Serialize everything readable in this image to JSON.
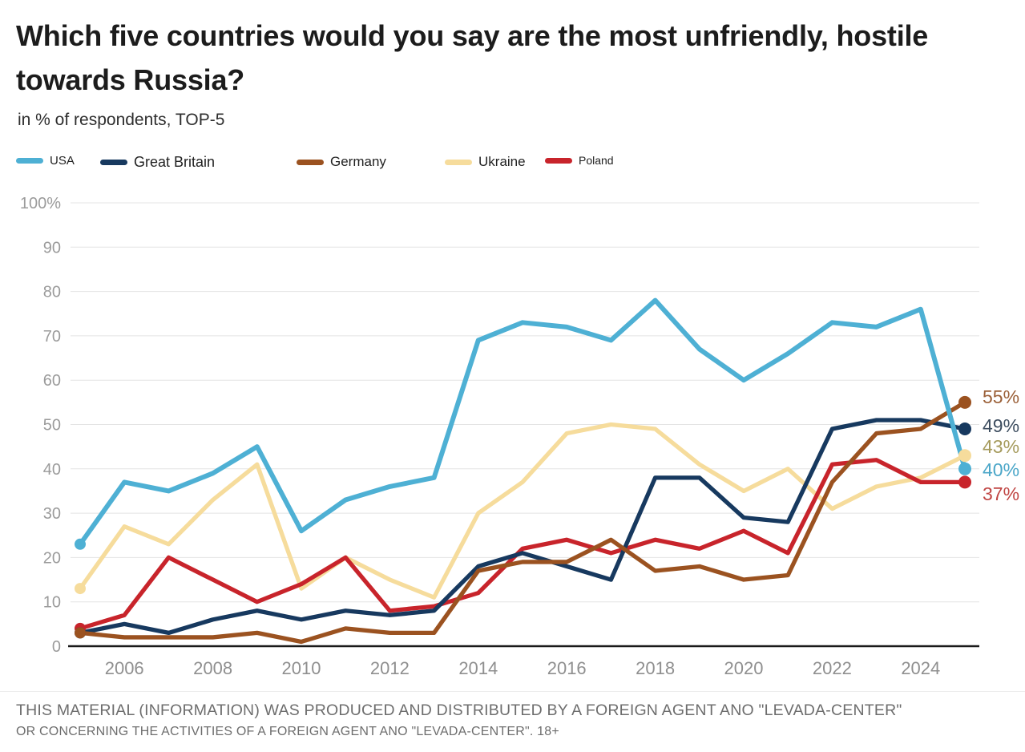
{
  "page": {
    "title": "Which five countries would you say are the most unfriendly, hostile towards Russia?",
    "subtitle": "in % of respondents, TOP-5"
  },
  "footer": {
    "line1": "THIS MATERIAL (INFORMATION) WAS PRODUCED AND DISTRIBUTED BY A FOREIGN AGENT ANO \"LEVADA-CENTER\"",
    "line2": "OR CONCERNING THE ACTIVITIES OF A FOREIGN AGENT ANO \"LEVADA-CENTER\". 18+"
  },
  "chart_data": {
    "type": "line",
    "x": [
      2005,
      2006,
      2007,
      2008,
      2009,
      2010,
      2011,
      2012,
      2013,
      2014,
      2015,
      2016,
      2017,
      2018,
      2019,
      2020,
      2021,
      2022,
      2023,
      2024,
      2025
    ],
    "x_tick_labels": [
      "2006",
      "2008",
      "2010",
      "2012",
      "2014",
      "2016",
      "2018",
      "2020",
      "2022",
      "2024"
    ],
    "x_tick_years": [
      2006,
      2008,
      2010,
      2012,
      2014,
      2016,
      2018,
      2020,
      2022,
      2024
    ],
    "y_ticks": [
      0,
      10,
      20,
      30,
      40,
      50,
      60,
      70,
      80,
      90,
      100
    ],
    "y_tick_top_label": "100%",
    "ylim": [
      0,
      100
    ],
    "grid": true,
    "legend_position": "top-left",
    "series": [
      {
        "name": "USA",
        "color": "#4eb0d4",
        "label_color": "#4aa6c8",
        "end_label": "40%",
        "values": [
          23,
          37,
          35,
          39,
          45,
          26,
          33,
          36,
          38,
          69,
          73,
          72,
          69,
          78,
          67,
          60,
          66,
          73,
          72,
          76,
          40
        ]
      },
      {
        "name": "Great Britain",
        "color": "#17395f",
        "label_color": "#3e4e60",
        "end_label": "49%",
        "values": [
          3,
          5,
          3,
          6,
          8,
          6,
          8,
          7,
          8,
          18,
          21,
          18,
          15,
          38,
          38,
          29,
          28,
          49,
          51,
          51,
          49
        ]
      },
      {
        "name": "Germany",
        "color": "#9b5220",
        "label_color": "#9b6038",
        "end_label": "55%",
        "values": [
          3,
          2,
          2,
          2,
          3,
          1,
          4,
          3,
          3,
          17,
          19,
          19,
          24,
          17,
          18,
          15,
          16,
          37,
          48,
          49,
          55
        ]
      },
      {
        "name": "Ukraine",
        "color": "#f6dc9c",
        "label_color": "#a59a5c",
        "end_label": "43%",
        "values": [
          13,
          27,
          23,
          33,
          41,
          13,
          20,
          15,
          11,
          30,
          37,
          48,
          50,
          49,
          41,
          35,
          40,
          31,
          36,
          38,
          43
        ]
      },
      {
        "name": "Poland",
        "color": "#c8242b",
        "label_color": "#c04543",
        "end_label": "37%",
        "values": [
          4,
          7,
          20,
          15,
          10,
          14,
          20,
          8,
          9,
          12,
          22,
          24,
          21,
          24,
          22,
          26,
          21,
          41,
          42,
          37,
          37
        ]
      }
    ]
  }
}
